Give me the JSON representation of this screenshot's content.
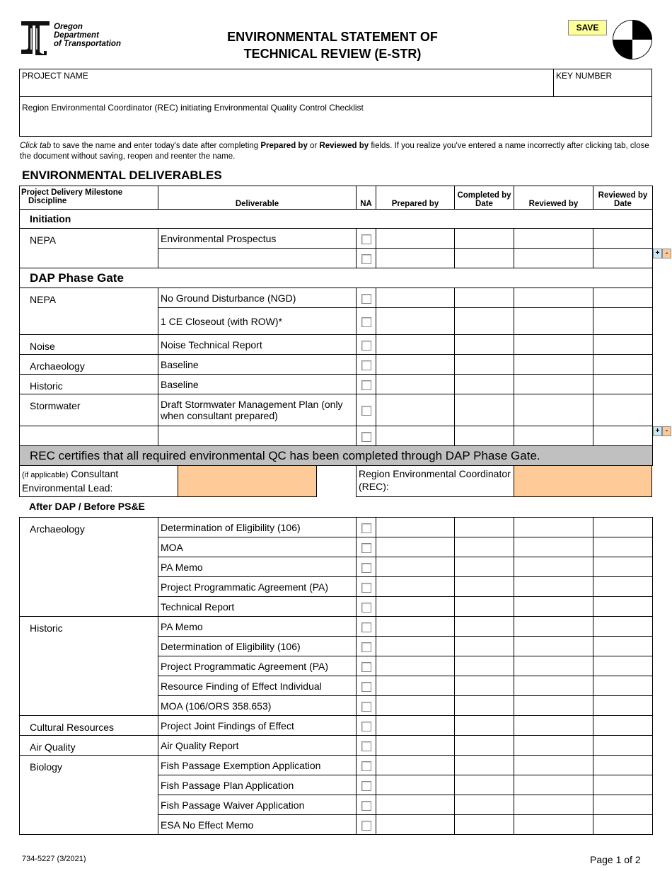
{
  "header": {
    "org_lines": [
      "Oregon",
      "Department",
      "of Transportation"
    ],
    "title_line1": "ENVIRONMENTAL STATEMENT OF",
    "title_line2": "TECHNICAL REVIEW (E-STR)",
    "save_label": "SAVE"
  },
  "project": {
    "project_name_label": "PROJECT NAME",
    "key_number_label": "KEY NUMBER",
    "rec_label": "Region Environmental Coordinator (REC) initiating Environmental Quality Control Checklist"
  },
  "note": {
    "p1": "Click tab",
    "p2": " to save the name and enter today's date after completing ",
    "p3": "Prepared by",
    "p4": " or ",
    "p5": "Reviewed by",
    "p6": " fields. If you realize you've entered a name incorrectly after clicking tab, close the document without saving, reopen and reenter the name."
  },
  "section_title": "ENVIRONMENTAL DELIVERABLES",
  "columns": {
    "milestone": "Project Delivery Milestone",
    "discipline": "Discipline",
    "deliverable": "Deliverable",
    "na": "NA",
    "prepared_by": "Prepared by",
    "completed_by_date": "Completed by Date",
    "reviewed_by": "Reviewed by",
    "reviewed_by_date": "Reviewed by Date"
  },
  "initiation": {
    "title": "Initiation",
    "groups": [
      {
        "discipline": "NEPA",
        "items": [
          "Environmental Prospectus",
          ""
        ]
      }
    ]
  },
  "dap": {
    "title": "DAP Phase Gate",
    "groups": [
      {
        "discipline": "NEPA",
        "items": [
          "No Ground Disturbance (NGD)",
          "1 CE Closeout (with ROW)*"
        ]
      },
      {
        "discipline": "Noise",
        "items": [
          "Noise Technical Report"
        ]
      },
      {
        "discipline": "Archaeology",
        "items": [
          "Baseline"
        ]
      },
      {
        "discipline": "Historic",
        "items": [
          "Baseline"
        ]
      },
      {
        "discipline": "Stormwater",
        "items": [
          "Draft Stormwater Management Plan (only when consultant prepared)"
        ]
      },
      {
        "discipline": "",
        "items": [
          ""
        ]
      }
    ]
  },
  "certify": "REC certifies that all required environmental QC has been completed through DAP Phase Gate.",
  "signatures": {
    "consultant_small": "(if applicable)",
    "consultant_label": " Consultant Environmental Lead:",
    "rec_label": "Region Environmental Coordinator (REC):"
  },
  "after_dap": {
    "title": "After DAP / Before PS&E",
    "groups": [
      {
        "discipline": "Archaeology",
        "items": [
          "Determination of Eligibility (106)",
          "MOA",
          "PA Memo",
          "Project Programmatic Agreement (PA)",
          "Technical Report"
        ]
      },
      {
        "discipline": "Historic",
        "items": [
          "PA Memo",
          "Determination of Eligibility (106)",
          "Project Programmatic Agreement (PA)",
          "Resource Finding of Effect Individual",
          "MOA (106/ORS 358.653)"
        ]
      },
      {
        "discipline": "Cultural Resources",
        "items": [
          "Project Joint Findings of Effect"
        ]
      },
      {
        "discipline": "Air Quality",
        "items": [
          "Air Quality Report"
        ]
      },
      {
        "discipline": "Biology",
        "items": [
          "Fish Passage Exemption Application",
          "Fish Passage Plan Application",
          "Fish Passage Waiver Application",
          "ESA No Effect Memo"
        ]
      }
    ]
  },
  "row_controls": {
    "add": "+",
    "remove": "-"
  },
  "footer": {
    "form_number": "734-5227 (3/2021)",
    "page": "Page 1 of 2"
  },
  "colors": {
    "save": "#ffff99",
    "signature_field": "#fdca98",
    "banner": "#c0c0c0"
  }
}
